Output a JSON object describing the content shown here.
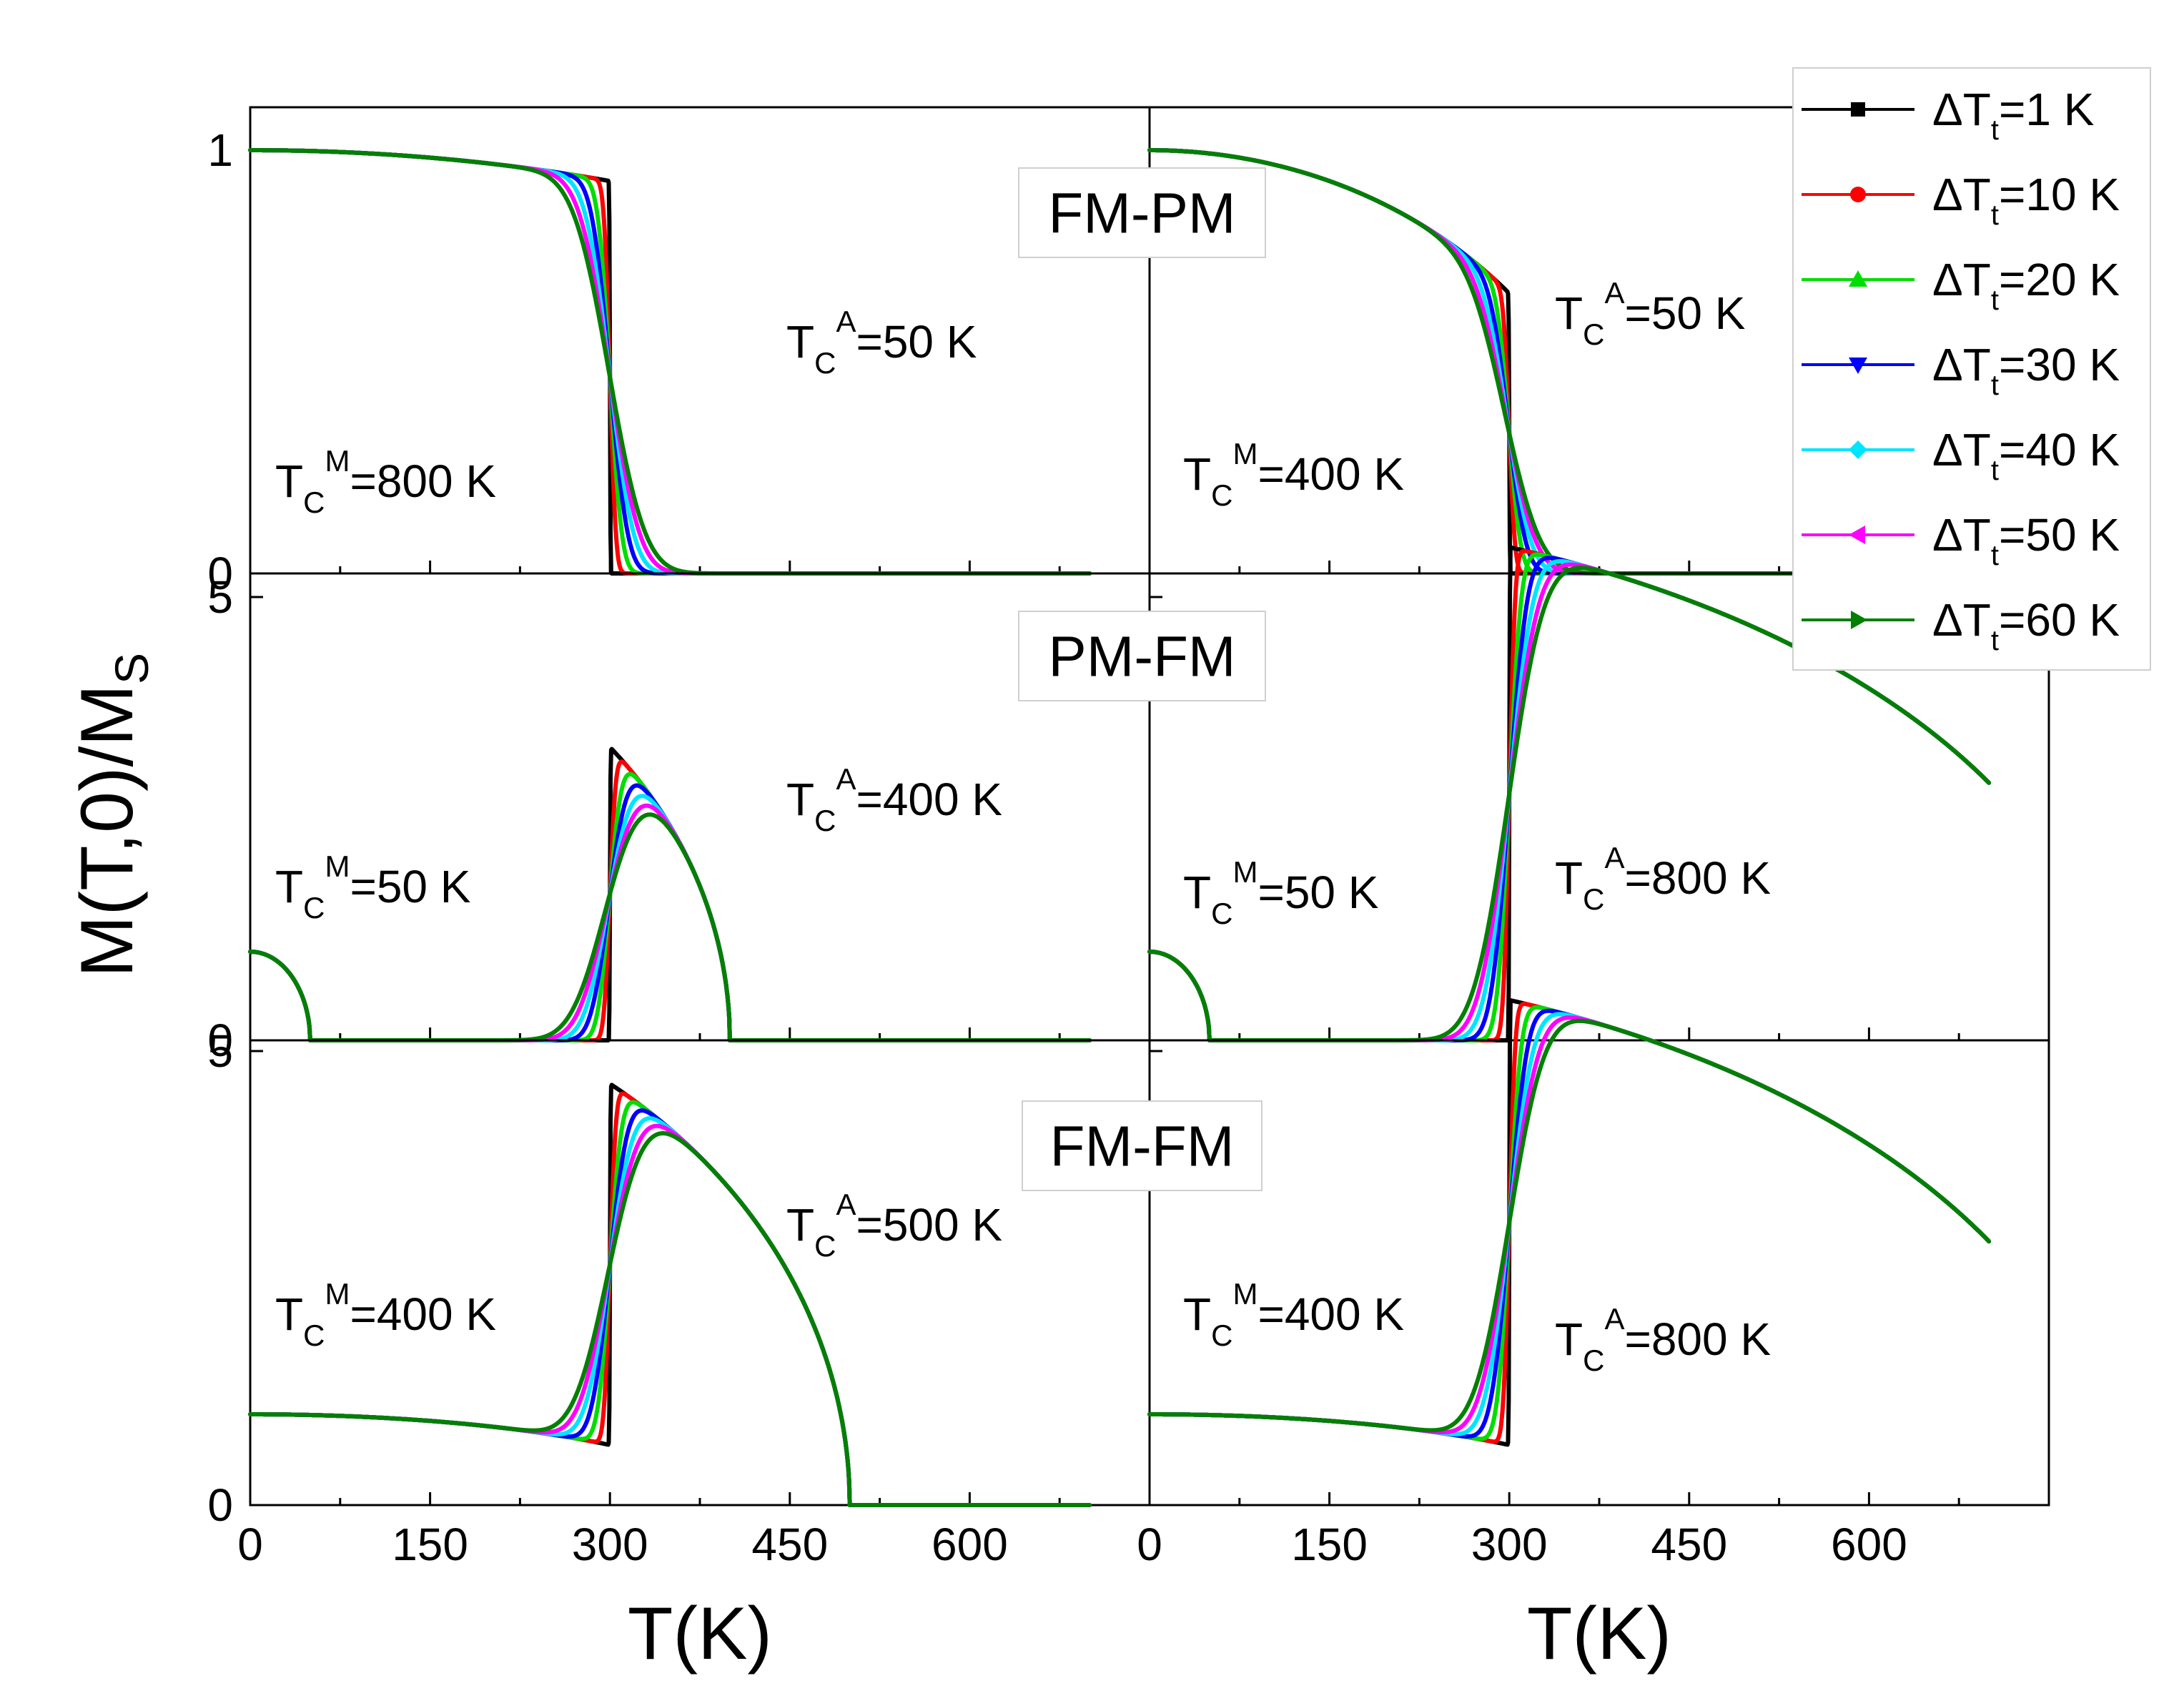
{
  "chart_data": {
    "type": "line",
    "ylabel": "M(T,0)/M",
    "ylabel_sub": "S",
    "xlabel": "T(K)",
    "xlim": [
      0,
      750
    ],
    "xticks": [
      0,
      150,
      300,
      450,
      600
    ],
    "xtick_labels": [
      "0",
      "150",
      "300",
      "450",
      "600"
    ],
    "transition_temperature": 300,
    "legend": {
      "placement": "top-right",
      "entries": [
        {
          "prefix": "ΔT",
          "sub": "t",
          "suffix": "=1 K",
          "color": "#000000",
          "marker": "square",
          "dT": 1
        },
        {
          "prefix": "ΔT",
          "sub": "t",
          "suffix": "=10 K",
          "color": "#ff0000",
          "marker": "circle",
          "dT": 10
        },
        {
          "prefix": "ΔT",
          "sub": "t",
          "suffix": "=20 K",
          "color": "#00dd00",
          "marker": "triangle-up",
          "dT": 20
        },
        {
          "prefix": "ΔT",
          "sub": "t",
          "suffix": "=30 K",
          "color": "#0000ff",
          "marker": "triangle-down",
          "dT": 30
        },
        {
          "prefix": "ΔT",
          "sub": "t",
          "suffix": "=40 K",
          "color": "#00e5ff",
          "marker": "diamond",
          "dT": 40
        },
        {
          "prefix": "ΔT",
          "sub": "t",
          "suffix": "=50 K",
          "color": "#ff00ff",
          "marker": "triangle-left",
          "dT": 50
        },
        {
          "prefix": "ΔT",
          "sub": "t",
          "suffix": "=60 K",
          "color": "#008000",
          "marker": "triangle-right",
          "dT": 60
        }
      ]
    },
    "rows": [
      {
        "label": "FM-PM",
        "ylim": [
          0,
          1.1
        ],
        "yticks": [
          0,
          1
        ],
        "ytick_labels": [
          "0",
          "1"
        ]
      },
      {
        "label": "PM-FM",
        "ylim": [
          0,
          5.0
        ],
        "yticks": [
          0,
          5
        ],
        "ytick_labels": [
          "0",
          "5"
        ]
      },
      {
        "label": "FM-FM",
        "ylim": [
          0,
          5.0
        ],
        "yticks": [
          0,
          5
        ],
        "ytick_labels": [
          "0",
          "5"
        ]
      }
    ],
    "panels": [
      {
        "row": 0,
        "col": 0,
        "TcM": 800,
        "TcA": 50,
        "scale": 1,
        "annotations": [
          {
            "base": "T",
            "sub": "C",
            "sup": "M",
            "value": "=800 K"
          },
          {
            "base": "T",
            "sub": "C",
            "sup": "A",
            "value": "=50 K"
          }
        ]
      },
      {
        "row": 0,
        "col": 1,
        "TcM": 400,
        "TcA": 50,
        "scale": 1,
        "annotations": [
          {
            "base": "T",
            "sub": "C",
            "sup": "M",
            "value": "=400 K"
          },
          {
            "base": "T",
            "sub": "C",
            "sup": "A",
            "value": "=50 K"
          }
        ]
      },
      {
        "row": 1,
        "col": 0,
        "TcM": 50,
        "TcA": 400,
        "scale": 5,
        "annotations": [
          {
            "base": "T",
            "sub": "C",
            "sup": "M",
            "value": "=50 K"
          },
          {
            "base": "T",
            "sub": "C",
            "sup": "A",
            "value": "=400 K"
          }
        ]
      },
      {
        "row": 1,
        "col": 1,
        "TcM": 50,
        "TcA": 800,
        "scale": 6,
        "annotations": [
          {
            "base": "T",
            "sub": "C",
            "sup": "M",
            "value": "=50 K"
          },
          {
            "base": "T",
            "sub": "C",
            "sup": "A",
            "value": "=800 K"
          }
        ]
      },
      {
        "row": 2,
        "col": 0,
        "TcM": 400,
        "TcA": 500,
        "scale": 5.8,
        "annotations": [
          {
            "base": "T",
            "sub": "C",
            "sup": "M",
            "value": "=400 K"
          },
          {
            "base": "T",
            "sub": "C",
            "sup": "A",
            "value": "=500 K"
          }
        ]
      },
      {
        "row": 2,
        "col": 1,
        "TcM": 400,
        "TcA": 800,
        "scale": 6,
        "annotations": [
          {
            "base": "T",
            "sub": "C",
            "sup": "M",
            "value": "=400 K"
          },
          {
            "base": "T",
            "sub": "C",
            "sup": "A",
            "value": "=800 K"
          }
        ]
      }
    ],
    "curves_T_range": [
      0,
      700
    ]
  }
}
